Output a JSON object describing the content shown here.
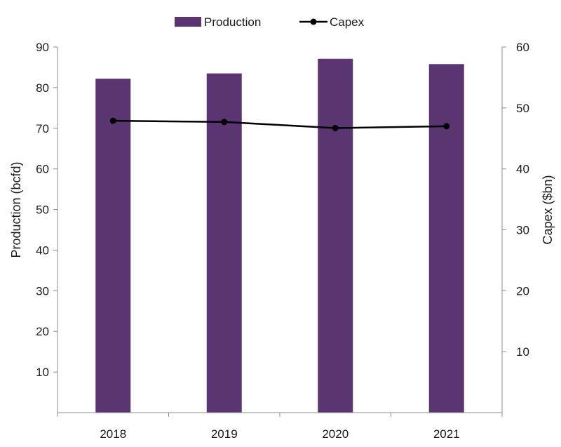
{
  "chart_data": {
    "type": "bar",
    "categories": [
      "2018",
      "2019",
      "2020",
      "2021"
    ],
    "series": [
      {
        "name": "Production",
        "type": "bar",
        "axis": "left",
        "values": [
          82.2,
          83.5,
          87.1,
          85.8
        ],
        "color": "#5b3571"
      },
      {
        "name": "Capex",
        "type": "line",
        "axis": "right",
        "values": [
          47.9,
          47.7,
          46.7,
          47.0
        ],
        "color": "#000000"
      }
    ],
    "title": "",
    "xlabel": "",
    "ylabel": "Production (bcfd)",
    "y2label": "Capex ($bn)",
    "ylim": [
      0,
      90
    ],
    "y2lim": [
      0,
      60
    ],
    "yticks": [
      10,
      20,
      30,
      40,
      50,
      60,
      70,
      80,
      90
    ],
    "y2ticks": [
      10,
      20,
      30,
      40,
      50,
      60
    ],
    "legend_position": "top-center",
    "grid": false
  }
}
